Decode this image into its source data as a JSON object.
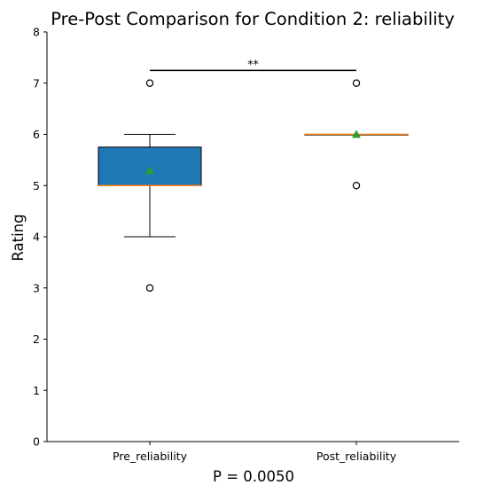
{
  "chart_data": {
    "type": "box",
    "title": "Pre-Post Comparison for Condition 2: reliability",
    "ylabel": "Rating",
    "xlabel_note": "P = 0.0050",
    "significance_label": "**",
    "ylim": [
      0,
      8
    ],
    "yticks": [
      "0",
      "1",
      "2",
      "3",
      "4",
      "5",
      "6",
      "7",
      "8"
    ],
    "categories": [
      "Pre_reliability",
      "Post_reliability"
    ],
    "boxes": [
      {
        "label": "Pre_reliability",
        "q1": 5.0,
        "median": 5.0,
        "q3": 5.75,
        "whisker_low": 4.0,
        "whisker_high": 6.0,
        "mean": 5.29,
        "outliers": [
          3,
          7
        ],
        "fill": "#1f77b4"
      },
      {
        "label": "Post_reliability",
        "q1": 6.0,
        "median": 6.0,
        "q3": 6.0,
        "whisker_low": 6.0,
        "whisker_high": 6.0,
        "mean": 6.0,
        "outliers": [
          5,
          7
        ],
        "fill": "#1f77b4"
      }
    ],
    "colors": {
      "median": "#ff7f0e",
      "mean": "#2ca02c",
      "box": "#1f77b4"
    },
    "grid": false,
    "legend": "none"
  }
}
